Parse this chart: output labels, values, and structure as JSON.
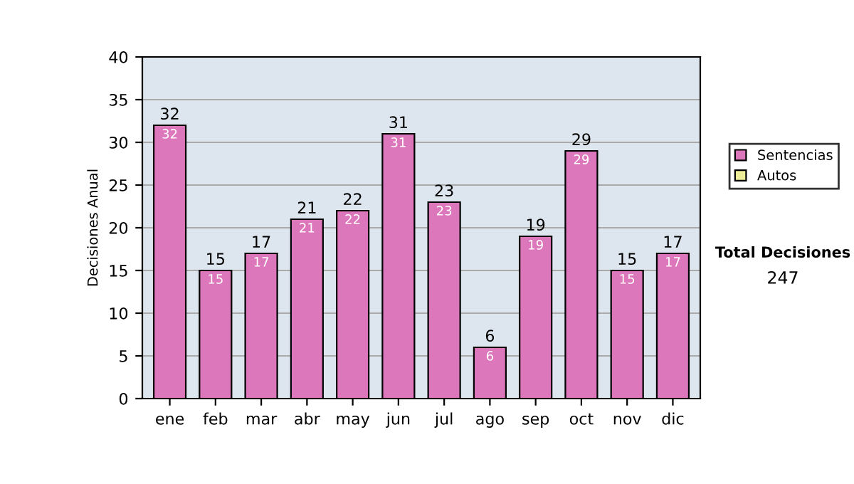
{
  "chart_data": {
    "type": "bar",
    "ylabel": "Decisiones Anual",
    "categories": [
      "ene",
      "feb",
      "mar",
      "abr",
      "may",
      "jun",
      "jul",
      "ago",
      "sep",
      "oct",
      "nov",
      "dic"
    ],
    "series": [
      {
        "name": "Sentencias",
        "color": "#dd77bb",
        "values": [
          32,
          15,
          17,
          21,
          22,
          31,
          23,
          6,
          19,
          29,
          15,
          17
        ],
        "value_labels": [
          "32",
          "15",
          "17",
          "21",
          "22",
          "31",
          "23",
          "6",
          "19",
          "29",
          "15",
          "17"
        ]
      },
      {
        "name": "Autos",
        "color": "#eeee99",
        "values": [
          null,
          null,
          null,
          null,
          null,
          null,
          null,
          null,
          null,
          null,
          null,
          null
        ]
      }
    ],
    "stacked": true,
    "totals": [
      "32",
      "15",
      "17",
      "21",
      "22",
      "31",
      "23",
      "6",
      "19",
      "29",
      "15",
      "17"
    ],
    "ylim": [
      0,
      40
    ],
    "yticks": [
      0,
      5,
      10,
      15,
      20,
      25,
      30,
      35,
      40
    ],
    "grid": "y",
    "legend": "right",
    "annotations": [
      "Total Decisiones",
      "247"
    ]
  }
}
